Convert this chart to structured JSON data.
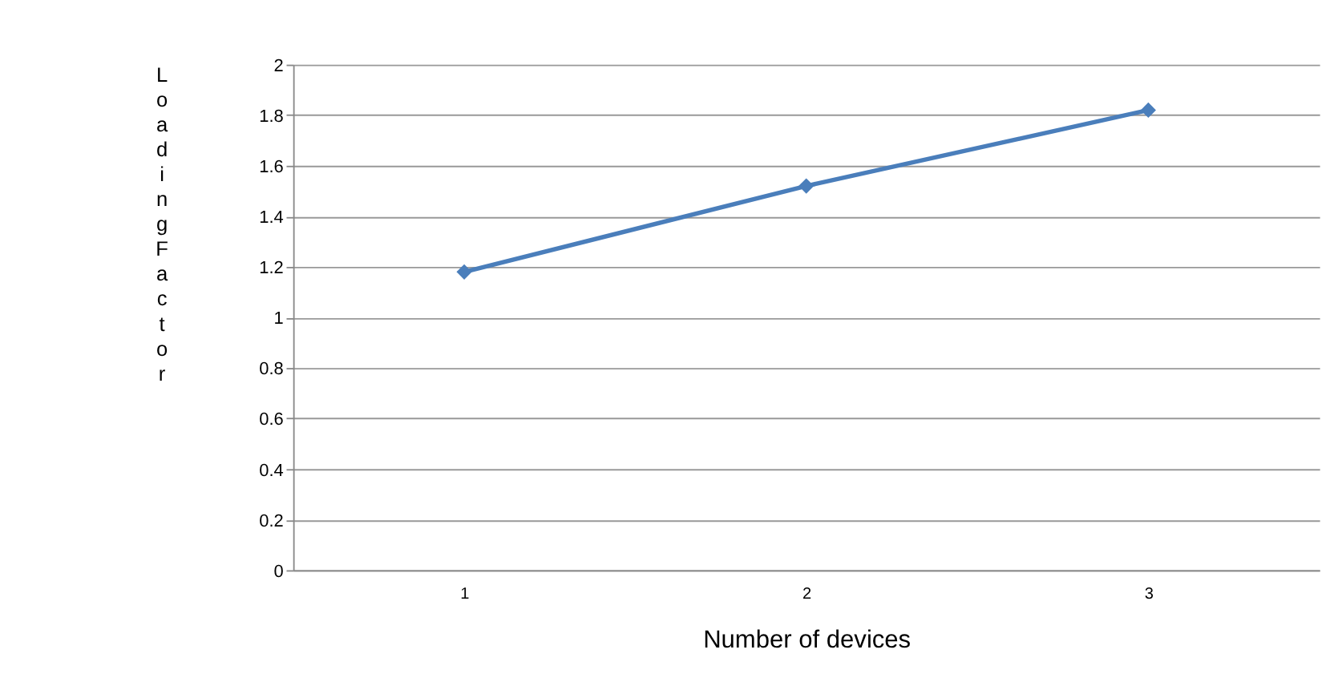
{
  "chart_data": {
    "type": "line",
    "xlabel": "Number of devices",
    "ylabel": "Loading Factor",
    "categories": [
      "1",
      "2",
      "3"
    ],
    "series": [
      {
        "color": "#4a7ebb",
        "values": [
          1.18,
          1.52,
          1.82
        ]
      }
    ],
    "ylim": [
      0,
      2
    ],
    "yticks": [
      0,
      0.2,
      0.4,
      0.6,
      0.8,
      1,
      1.2,
      1.4,
      1.6,
      1.8,
      2
    ],
    "grid": "y",
    "marker": "diamond",
    "line_style": "solid",
    "legend": false
  }
}
